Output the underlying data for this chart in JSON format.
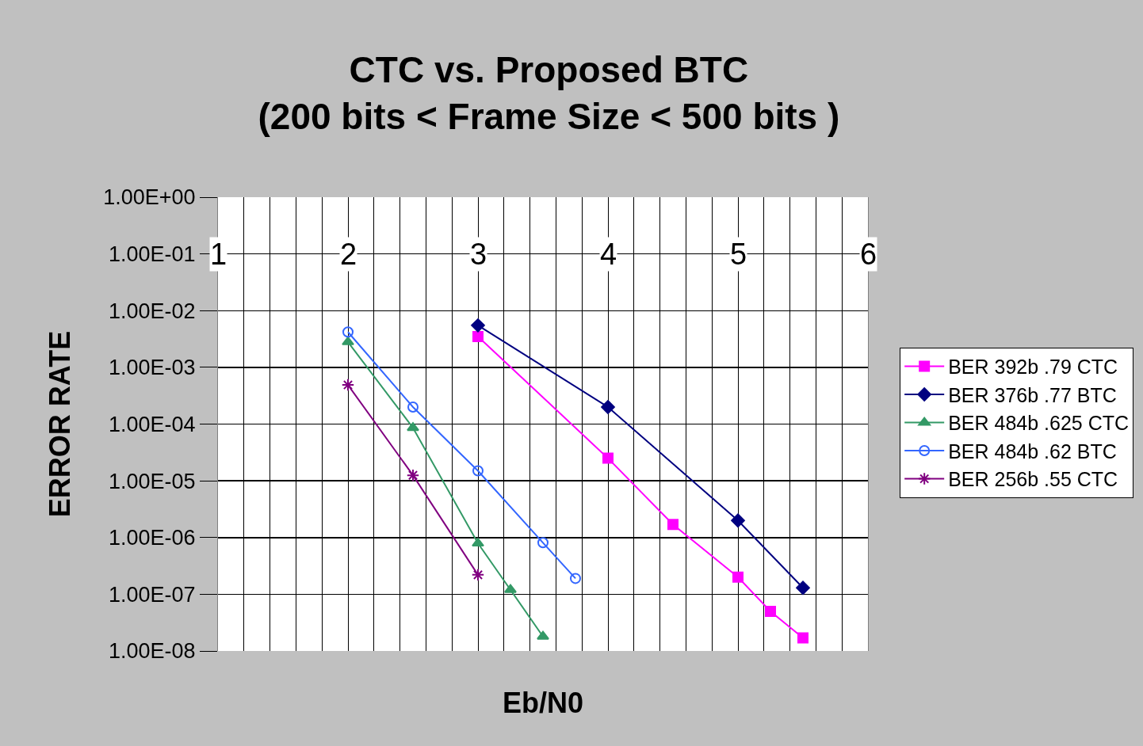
{
  "chart_data": {
    "type": "line",
    "title": "CTC vs. Proposed BTC\n(200 bits < Frame Size < 500 bits )",
    "xlabel": "Eb/N0",
    "ylabel": "ERROR RATE",
    "log": "y",
    "grid": true,
    "legend": "right",
    "line_style": "solid",
    "xlim": [
      1,
      6
    ],
    "xticks": [
      1,
      2,
      3,
      4,
      5,
      6
    ],
    "ylim": [
      1e-08,
      1
    ],
    "yticks": [
      {
        "value": 1,
        "label": "1.00E+00"
      },
      {
        "value": 0.1,
        "label": "1.00E-01"
      },
      {
        "value": 0.01,
        "label": "1.00E-02"
      },
      {
        "value": 0.001,
        "label": "1.00E-03"
      },
      {
        "value": 0.0001,
        "label": "1.00E-04"
      },
      {
        "value": 1e-05,
        "label": "1.00E-05"
      },
      {
        "value": 1e-06,
        "label": "1.00E-06"
      },
      {
        "value": 1e-07,
        "label": "1.00E-07"
      },
      {
        "value": 1e-08,
        "label": "1.00E-08"
      }
    ],
    "series": [
      {
        "name": "BER 392b .79 CTC",
        "color": "#ff00ff",
        "marker": "square",
        "x": [
          3,
          4,
          4.5,
          5,
          5.25,
          5.5
        ],
        "values": [
          0.0035,
          2.5e-05,
          1.7e-06,
          2e-07,
          5e-08,
          1.7e-08
        ]
      },
      {
        "name": "BER 376b .77 BTC",
        "color": "#000080",
        "marker": "diamond",
        "x": [
          3,
          4,
          5,
          5.5
        ],
        "values": [
          0.0055,
          0.0002,
          2e-06,
          1.3e-07
        ]
      },
      {
        "name": "BER 484b .625 CTC",
        "color": "#339966",
        "marker": "triangle",
        "x": [
          2,
          2.5,
          3,
          3.25,
          3.5
        ],
        "values": [
          0.0028,
          8.6e-05,
          7.9e-07,
          1.2e-07,
          1.8e-08
        ]
      },
      {
        "name": "BER 484b .62 BTC",
        "color": "#3366ff",
        "marker": "circle",
        "x": [
          2,
          2.5,
          3,
          3.5,
          3.75
        ],
        "values": [
          0.0042,
          0.0002,
          1.5e-05,
          8.1e-07,
          1.9e-07
        ]
      },
      {
        "name": "BER 256b .55 CTC",
        "color": "#800080",
        "marker": "cross",
        "x": [
          2,
          2.5,
          3
        ],
        "values": [
          0.00049,
          1.25e-05,
          2.2e-07
        ]
      }
    ]
  }
}
